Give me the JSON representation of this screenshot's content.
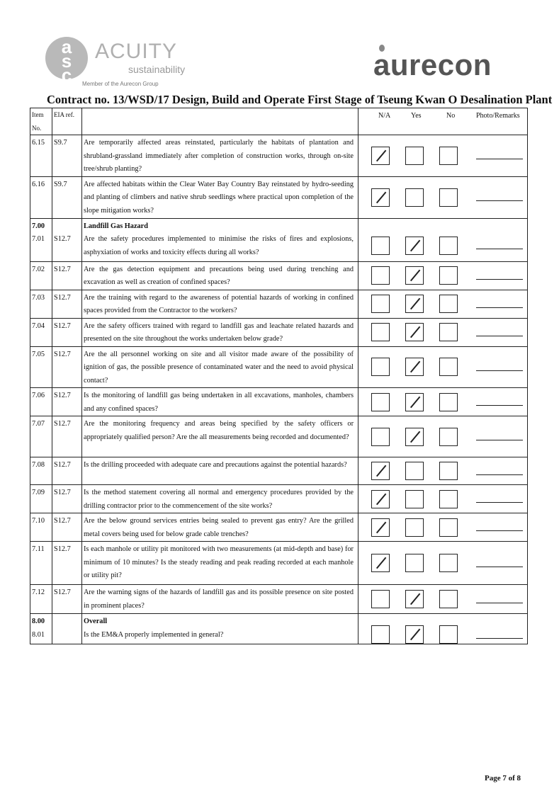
{
  "logos": {
    "left": {
      "mark": "asc",
      "name": "ACUITY",
      "sub": "sustainability",
      "member": "Member of the Aurecon Group"
    },
    "right": {
      "name": "aurecon"
    }
  },
  "title": "Contract no.  13/WSD/17 Design, Build and Operate First Stage of Tseung Kwan O Desalination Plant",
  "headers": {
    "item": "Item No.",
    "eia": "EIA ref.",
    "na": "N/A",
    "yes": "Yes",
    "no": "No",
    "remarks": "Photo/Remarks"
  },
  "rows": [
    {
      "item": "6.15",
      "eia": "S9.7",
      "text": "Are temporarily affected areas reinstated, particularly the habitats of plantation and shrubland-grassland immediately after completion of construction works, through on-site tree/shrub planting?",
      "answer": "N/A"
    },
    {
      "item": "6.16",
      "eia": "S9.7",
      "text": "Are affected habitats within the Clear Water Bay Country Bay reinstated by hydro-seeding and planting of climbers and native shrub seedlings where practical upon completion of the slope mitigation works?",
      "answer": "N/A"
    },
    {
      "section_item": "7.00",
      "section": "Landfill Gas Hazard",
      "item": "7.01",
      "eia": "S12.7",
      "text": "Are the safety procedures implemented to minimise the risks of fires and explosions, asphyxiation of works and toxicity effects during all works?",
      "answer": "Yes"
    },
    {
      "item": "7.02",
      "eia": "S12.7",
      "text": "Are the gas detection equipment and precautions being used during trenching and excavation as well as creation of confined spaces?",
      "answer": "Yes"
    },
    {
      "item": "7.03",
      "eia": "S12.7",
      "text": "Are the training with regard to the awareness of potential hazards of working in confined spaces provided from the Contractor to the workers?",
      "answer": "Yes"
    },
    {
      "item": "7.04",
      "eia": "S12.7",
      "text": "Are the safety officers trained with regard to landfill gas and leachate related hazards and presented on the site throughout the works undertaken below grade?",
      "answer": "Yes"
    },
    {
      "item": "7.05",
      "eia": "S12.7",
      "text": "Are the all personnel working on site and all visitor made aware of the possibility of ignition of gas, the possible presence of contaminated water and the need to avoid physical contact?",
      "answer": "Yes"
    },
    {
      "item": "7.06",
      "eia": "S12.7",
      "text": "Is the monitoring of landfill gas being undertaken in all excavations, manholes, chambers and any confined spaces?",
      "answer": "Yes"
    },
    {
      "item": "7.07",
      "eia": "S12.7",
      "text": "Are the monitoring frequency and areas being specified by the safety officers or appropriately qualified person? Are the all measurements being recorded and documented?",
      "answer": "Yes"
    },
    {
      "item": "7.08",
      "eia": "S12.7",
      "text": "Is the drilling proceeded with adequate care and precautions against the potential hazards?",
      "answer": "N/A"
    },
    {
      "item": "7.09",
      "eia": "S12.7",
      "text": "Is the method statement covering all normal and emergency procedures provided by the drilling contractor prior to the commencement of the site works?",
      "answer": "N/A"
    },
    {
      "item": "7.10",
      "eia": "S12.7",
      "text": "Are the below ground services entries being sealed to prevent gas entry? Are the grilled metal covers being used for below grade cable trenches?",
      "answer": "N/A"
    },
    {
      "item": "7.11",
      "eia": "S12.7",
      "text": "Is each manhole or utility pit monitored with two measurements (at mid-depth and base) for minimum of 10 minutes? Is the steady reading and peak reading recorded at each manhole or utility pit?",
      "answer": "N/A"
    },
    {
      "item": "7.12",
      "eia": "S12.7",
      "text": "Are the warning signs of the hazards of landfill gas and its possible presence on site posted in prominent places?",
      "answer": "Yes"
    },
    {
      "section_item": "8.00",
      "section": "Overall",
      "item": "8.01",
      "eia": "",
      "text": "Is the EM&A properly implemented in general?",
      "answer": "Yes"
    }
  ],
  "footer": "Page 7 of 8"
}
